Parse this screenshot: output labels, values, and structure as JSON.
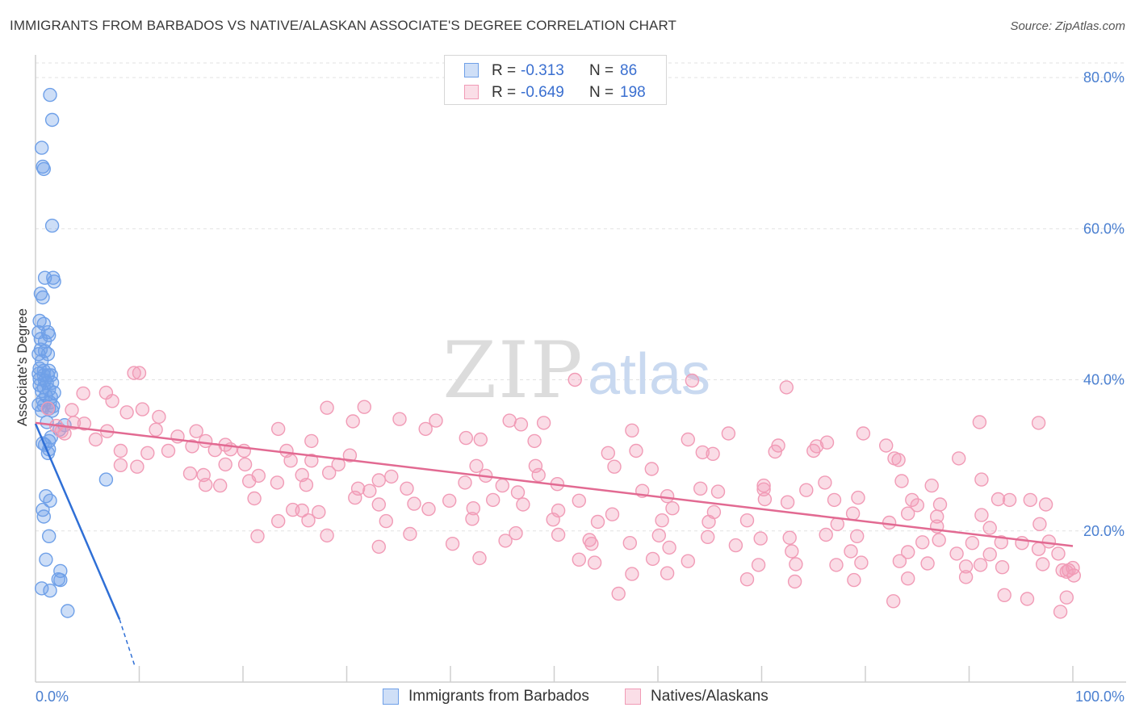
{
  "title": "IMMIGRANTS FROM BARBADOS VS NATIVE/ALASKAN ASSOCIATE'S DEGREE CORRELATION CHART",
  "source": "Source: ZipAtlas.com",
  "watermark": {
    "zip": "ZIP",
    "atlas": "atlas"
  },
  "legend": {
    "rows": [
      {
        "r_label": "R =",
        "r_value": "-0.313",
        "n_label": "N =",
        "n_value": "86",
        "color": "#6fa0e8"
      },
      {
        "r_label": "R =",
        "r_value": "-0.649",
        "n_label": "N =",
        "n_value": "198",
        "color": "#f19bb6"
      }
    ]
  },
  "bottom_legend": [
    "Immigrants from Barbados",
    "Natives/Alaskans"
  ],
  "chart_data": {
    "type": "scatter",
    "title": "IMMIGRANTS FROM BARBADOS VS NATIVE/ALASKAN ASSOCIATE'S DEGREE CORRELATION CHART",
    "xlabel": "",
    "ylabel": "Associate's Degree",
    "xlim": [
      0,
      100
    ],
    "ylim": [
      0,
      83
    ],
    "x_tick_labels": [
      "0.0%",
      "100.0%"
    ],
    "y_ticks": [
      20,
      40,
      60,
      80
    ],
    "y_tick_labels": [
      "20.0%",
      "40.0%",
      "60.0%",
      "80.0%"
    ],
    "grid": true,
    "legend_position": "top-center",
    "series": [
      {
        "name": "Immigrants from Barbados",
        "color": "#6fa0e8",
        "line_color": "#2f6fd6",
        "trend": {
          "x": [
            0,
            8.1
          ],
          "y": [
            34.2,
            8.3
          ],
          "dashed_to": [
            9.6,
            2
          ]
        },
        "points": [
          [
            1.4,
            77.7
          ],
          [
            1.6,
            74.4
          ],
          [
            0.6,
            70.7
          ],
          [
            0.7,
            68.2
          ],
          [
            0.8,
            67.9
          ],
          [
            1.6,
            60.4
          ],
          [
            0.9,
            53.5
          ],
          [
            1.7,
            53.5
          ],
          [
            1.8,
            53.0
          ],
          [
            0.5,
            51.4
          ],
          [
            0.7,
            50.9
          ],
          [
            0.4,
            47.8
          ],
          [
            0.8,
            47.4
          ],
          [
            0.3,
            46.3
          ],
          [
            1.2,
            46.3
          ],
          [
            1.3,
            45.9
          ],
          [
            0.5,
            45.4
          ],
          [
            0.9,
            45.1
          ],
          [
            0.5,
            44.0
          ],
          [
            0.9,
            43.8
          ],
          [
            0.3,
            43.4
          ],
          [
            1.2,
            43.4
          ],
          [
            0.6,
            42.5
          ],
          [
            0.4,
            41.5
          ],
          [
            0.8,
            41.2
          ],
          [
            1.3,
            41.2
          ],
          [
            0.3,
            40.8
          ],
          [
            0.8,
            40.6
          ],
          [
            1.2,
            40.6
          ],
          [
            1.5,
            40.6
          ],
          [
            0.4,
            40.1
          ],
          [
            0.9,
            39.9
          ],
          [
            1.1,
            39.6
          ],
          [
            1.6,
            39.6
          ],
          [
            0.4,
            39.3
          ],
          [
            0.8,
            39.0
          ],
          [
            1.3,
            38.7
          ],
          [
            0.6,
            38.5
          ],
          [
            1.8,
            38.3
          ],
          [
            1.0,
            37.9
          ],
          [
            1.5,
            37.7
          ],
          [
            0.7,
            37.3
          ],
          [
            1.4,
            37.0
          ],
          [
            0.3,
            36.7
          ],
          [
            0.8,
            36.6
          ],
          [
            1.7,
            36.5
          ],
          [
            1.3,
            36.2
          ],
          [
            0.6,
            35.9
          ],
          [
            1.6,
            35.9
          ],
          [
            1.1,
            34.4
          ],
          [
            2.8,
            34.0
          ],
          [
            2.3,
            33.4
          ],
          [
            1.5,
            32.4
          ],
          [
            1.3,
            31.9
          ],
          [
            0.7,
            31.6
          ],
          [
            0.9,
            31.4
          ],
          [
            1.3,
            30.8
          ],
          [
            1.2,
            30.3
          ],
          [
            6.8,
            26.8
          ],
          [
            1.0,
            24.6
          ],
          [
            1.4,
            24.0
          ],
          [
            0.7,
            22.8
          ],
          [
            0.8,
            21.9
          ],
          [
            1.3,
            19.3
          ],
          [
            1.0,
            16.2
          ],
          [
            2.4,
            14.7
          ],
          [
            2.2,
            13.6
          ],
          [
            2.4,
            13.5
          ],
          [
            0.6,
            12.4
          ],
          [
            1.4,
            12.1
          ],
          [
            3.1,
            9.4
          ]
        ]
      },
      {
        "name": "Natives/Alaskans",
        "color": "#f19bb6",
        "line_color": "#e26a92",
        "trend": {
          "x": [
            0,
            100
          ],
          "y": [
            34.3,
            18.0
          ]
        },
        "points": [
          [
            9.5,
            40.9
          ],
          [
            10.0,
            40.9
          ],
          [
            52.0,
            40.0
          ],
          [
            63.3,
            39.9
          ],
          [
            72.4,
            39.0
          ],
          [
            6.8,
            38.3
          ],
          [
            4.6,
            38.2
          ],
          [
            7.4,
            37.2
          ],
          [
            28.1,
            36.3
          ],
          [
            31.7,
            36.4
          ],
          [
            1.2,
            36.2
          ],
          [
            3.5,
            36.0
          ],
          [
            10.3,
            36.1
          ],
          [
            8.8,
            35.7
          ],
          [
            11.9,
            35.1
          ],
          [
            35.1,
            34.8
          ],
          [
            38.6,
            34.6
          ],
          [
            45.7,
            34.6
          ],
          [
            30.6,
            34.5
          ],
          [
            49.0,
            34.3
          ],
          [
            46.8,
            34.1
          ],
          [
            91.0,
            34.4
          ],
          [
            96.7,
            34.3
          ],
          [
            3.7,
            34.3
          ],
          [
            4.7,
            34.2
          ],
          [
            2.0,
            33.9
          ],
          [
            2.5,
            33.2
          ],
          [
            2.8,
            32.9
          ],
          [
            6.9,
            33.2
          ],
          [
            11.6,
            33.4
          ],
          [
            23.4,
            33.5
          ],
          [
            37.6,
            33.5
          ],
          [
            57.5,
            33.3
          ],
          [
            66.8,
            32.9
          ],
          [
            79.8,
            32.9
          ],
          [
            15.5,
            33.2
          ],
          [
            13.7,
            32.5
          ],
          [
            41.5,
            32.3
          ],
          [
            5.8,
            32.1
          ],
          [
            16.4,
            31.9
          ],
          [
            18.3,
            31.4
          ],
          [
            15.1,
            31.2
          ],
          [
            26.6,
            31.9
          ],
          [
            42.9,
            32.1
          ],
          [
            48.1,
            31.9
          ],
          [
            62.9,
            32.1
          ],
          [
            76.3,
            31.7
          ],
          [
            71.6,
            31.3
          ],
          [
            75.3,
            31.2
          ],
          [
            82.0,
            31.3
          ],
          [
            75.0,
            30.6
          ],
          [
            8.2,
            30.6
          ],
          [
            10.8,
            30.3
          ],
          [
            12.8,
            30.6
          ],
          [
            17.3,
            30.7
          ],
          [
            18.8,
            30.8
          ],
          [
            20.1,
            30.6
          ],
          [
            24.2,
            30.6
          ],
          [
            30.3,
            30.0
          ],
          [
            55.2,
            30.3
          ],
          [
            57.9,
            30.6
          ],
          [
            64.3,
            30.4
          ],
          [
            65.3,
            30.2
          ],
          [
            71.3,
            30.5
          ],
          [
            82.8,
            29.6
          ],
          [
            89.0,
            29.6
          ],
          [
            83.2,
            29.4
          ],
          [
            24.6,
            29.3
          ],
          [
            26.6,
            29.3
          ],
          [
            42.5,
            28.6
          ],
          [
            43.4,
            27.3
          ],
          [
            48.2,
            28.6
          ],
          [
            55.8,
            28.5
          ],
          [
            59.4,
            28.2
          ],
          [
            20.2,
            28.8
          ],
          [
            29.2,
            28.8
          ],
          [
            18.3,
            28.8
          ],
          [
            8.2,
            28.7
          ],
          [
            9.8,
            28.5
          ],
          [
            14.9,
            27.6
          ],
          [
            16.2,
            27.4
          ],
          [
            21.5,
            27.3
          ],
          [
            25.7,
            27.4
          ],
          [
            28.3,
            27.7
          ],
          [
            33.1,
            26.7
          ],
          [
            34.3,
            27.2
          ],
          [
            48.5,
            27.4
          ],
          [
            50.3,
            26.2
          ],
          [
            70.2,
            26.0
          ],
          [
            76.1,
            26.4
          ],
          [
            83.5,
            26.6
          ],
          [
            86.4,
            26.0
          ],
          [
            91.2,
            26.8
          ],
          [
            16.4,
            26.1
          ],
          [
            17.8,
            26.0
          ],
          [
            20.6,
            26.6
          ],
          [
            23.3,
            26.4
          ],
          [
            26.1,
            26.1
          ],
          [
            31.1,
            25.6
          ],
          [
            32.2,
            25.3
          ],
          [
            35.8,
            25.6
          ],
          [
            41.4,
            26.4
          ],
          [
            45.0,
            26.0
          ],
          [
            46.5,
            25.1
          ],
          [
            58.5,
            25.3
          ],
          [
            64.1,
            25.6
          ],
          [
            65.8,
            25.2
          ],
          [
            70.2,
            25.5
          ],
          [
            74.3,
            25.4
          ],
          [
            79.3,
            24.4
          ],
          [
            84.5,
            24.1
          ],
          [
            93.9,
            24.1
          ],
          [
            21.1,
            24.3
          ],
          [
            30.8,
            24.4
          ],
          [
            33.1,
            23.5
          ],
          [
            36.5,
            23.6
          ],
          [
            39.9,
            24.0
          ],
          [
            44.1,
            24.1
          ],
          [
            47.0,
            23.5
          ],
          [
            52.4,
            24.0
          ],
          [
            60.9,
            24.6
          ],
          [
            70.3,
            24.2
          ],
          [
            72.5,
            23.8
          ],
          [
            77.0,
            24.1
          ],
          [
            85.0,
            23.4
          ],
          [
            87.2,
            23.5
          ],
          [
            92.8,
            24.2
          ],
          [
            95.9,
            24.1
          ],
          [
            97.4,
            23.5
          ],
          [
            24.8,
            22.8
          ],
          [
            25.7,
            22.7
          ],
          [
            27.3,
            22.5
          ],
          [
            37.9,
            22.9
          ],
          [
            42.2,
            23.0
          ],
          [
            50.4,
            22.7
          ],
          [
            55.6,
            22.2
          ],
          [
            61.4,
            23.0
          ],
          [
            65.4,
            22.5
          ],
          [
            78.8,
            22.3
          ],
          [
            84.1,
            22.3
          ],
          [
            86.9,
            21.9
          ],
          [
            91.2,
            22.1
          ],
          [
            23.4,
            21.3
          ],
          [
            26.3,
            21.4
          ],
          [
            33.8,
            21.3
          ],
          [
            42.1,
            21.6
          ],
          [
            49.9,
            21.5
          ],
          [
            54.2,
            21.2
          ],
          [
            60.4,
            21.4
          ],
          [
            64.9,
            21.2
          ],
          [
            68.6,
            21.4
          ],
          [
            77.3,
            20.9
          ],
          [
            82.3,
            21.1
          ],
          [
            86.9,
            20.6
          ],
          [
            92.0,
            20.4
          ],
          [
            96.8,
            20.9
          ],
          [
            21.4,
            19.3
          ],
          [
            28.1,
            19.4
          ],
          [
            36.1,
            19.6
          ],
          [
            46.3,
            19.7
          ],
          [
            50.4,
            19.5
          ],
          [
            53.4,
            18.8
          ],
          [
            60.1,
            19.4
          ],
          [
            64.8,
            19.2
          ],
          [
            69.9,
            19.0
          ],
          [
            72.7,
            19.1
          ],
          [
            76.2,
            19.5
          ],
          [
            79.2,
            19.3
          ],
          [
            85.5,
            18.5
          ],
          [
            87.1,
            18.8
          ],
          [
            90.3,
            18.4
          ],
          [
            93.1,
            18.5
          ],
          [
            95.1,
            18.4
          ],
          [
            97.7,
            18.6
          ],
          [
            33.1,
            17.9
          ],
          [
            40.2,
            18.3
          ],
          [
            45.3,
            18.7
          ],
          [
            53.6,
            18.3
          ],
          [
            57.3,
            18.4
          ],
          [
            61.1,
            17.8
          ],
          [
            67.5,
            18.1
          ],
          [
            72.9,
            17.3
          ],
          [
            78.6,
            17.3
          ],
          [
            84.1,
            17.2
          ],
          [
            88.8,
            17.0
          ],
          [
            92.0,
            16.9
          ],
          [
            96.7,
            17.6
          ],
          [
            98.6,
            17.0
          ],
          [
            42.8,
            16.4
          ],
          [
            52.4,
            16.2
          ],
          [
            53.9,
            15.8
          ],
          [
            59.5,
            16.3
          ],
          [
            62.9,
            16.0
          ],
          [
            69.7,
            15.5
          ],
          [
            73.3,
            15.6
          ],
          [
            77.2,
            15.5
          ],
          [
            79.6,
            15.8
          ],
          [
            83.3,
            16.0
          ],
          [
            86.0,
            15.7
          ],
          [
            89.7,
            15.3
          ],
          [
            91.1,
            15.5
          ],
          [
            93.2,
            15.2
          ],
          [
            97.1,
            15.6
          ],
          [
            99.0,
            14.8
          ],
          [
            57.5,
            14.3
          ],
          [
            60.9,
            14.4
          ],
          [
            68.6,
            13.6
          ],
          [
            73.2,
            13.3
          ],
          [
            78.9,
            13.5
          ],
          [
            84.1,
            13.7
          ],
          [
            89.7,
            13.9
          ],
          [
            99.6,
            14.8
          ],
          [
            100.0,
            15.1
          ],
          [
            99.4,
            14.6
          ],
          [
            100.1,
            14.1
          ],
          [
            99.4,
            11.2
          ],
          [
            98.8,
            9.3
          ],
          [
            82.7,
            10.7
          ],
          [
            93.4,
            11.5
          ],
          [
            95.6,
            11.0
          ],
          [
            56.2,
            11.7
          ]
        ]
      }
    ]
  }
}
